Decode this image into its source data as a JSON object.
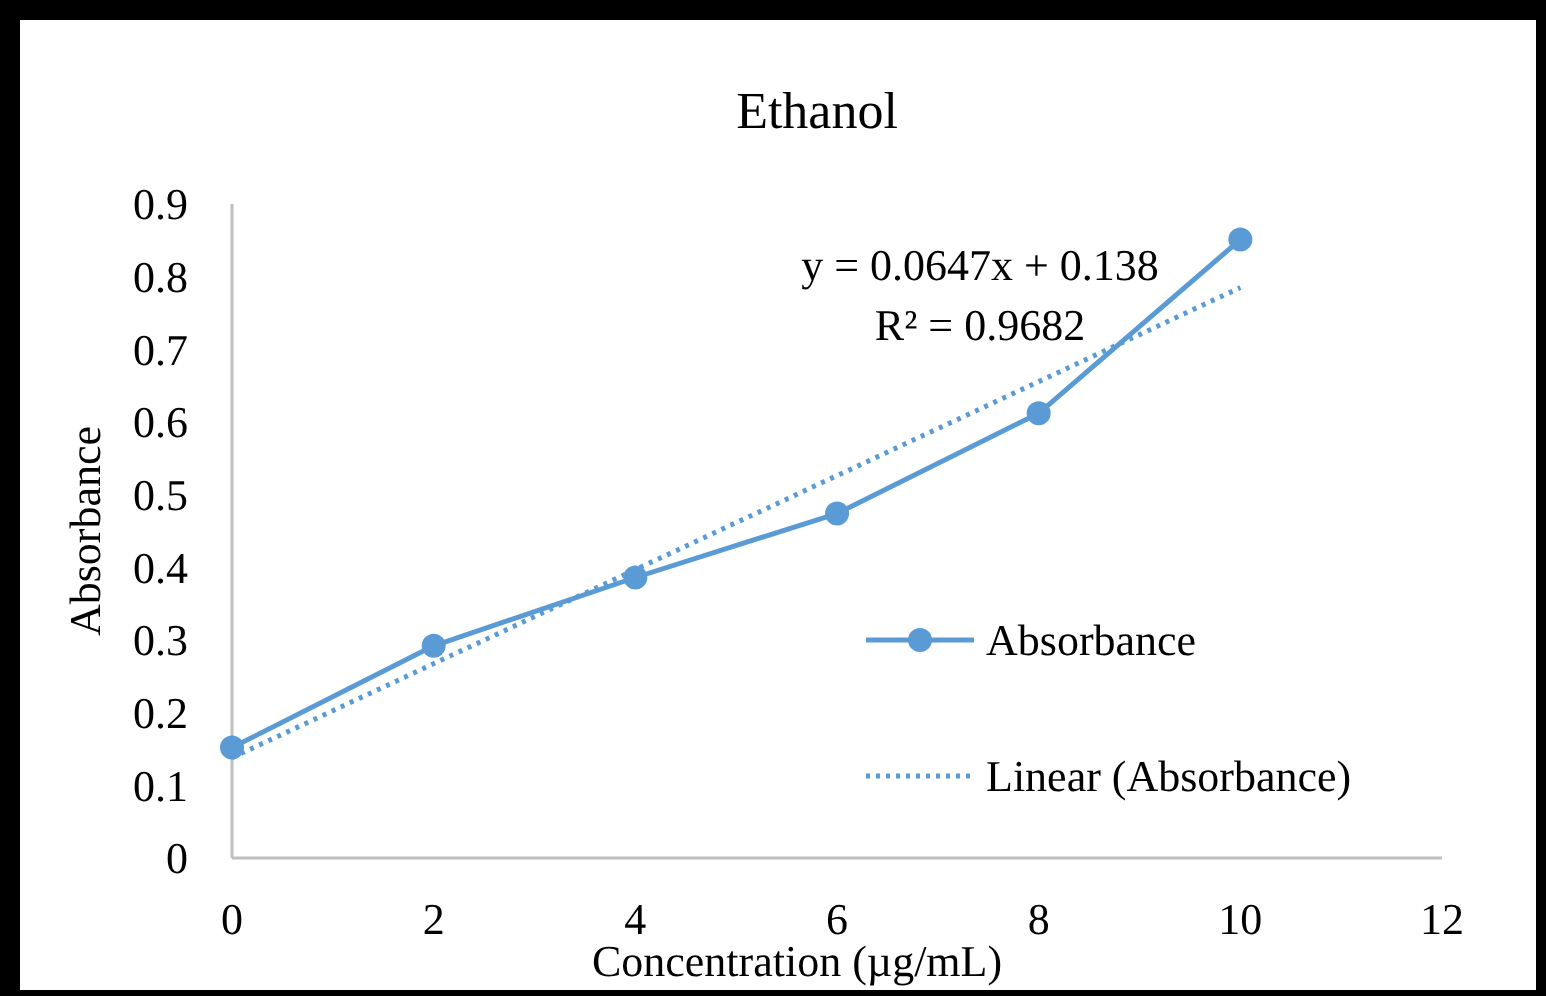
{
  "chart_data": {
    "type": "line",
    "title": "Ethanol",
    "xlabel": "Concentration (µg/mL)",
    "ylabel": "Absorbance",
    "xlim": [
      0,
      12
    ],
    "xticks": [
      0,
      2,
      4,
      6,
      8,
      10,
      12
    ],
    "ylim": [
      0,
      0.9
    ],
    "yticks": [
      0,
      0.1,
      0.2,
      0.3,
      0.4,
      0.5,
      0.6,
      0.7,
      0.8,
      0.9
    ],
    "grid": false,
    "legend": "right",
    "annotations": [
      "y = 0.0647x + 0.138",
      "R² = 0.9682"
    ],
    "series": [
      {
        "name": "Absorbance",
        "color": "#5b9bd5",
        "marker": "circle",
        "line_style": "solid",
        "x": [
          0,
          2,
          4,
          6,
          8,
          10
        ],
        "values": [
          0.152,
          0.292,
          0.386,
          0.474,
          0.612,
          0.851
        ]
      },
      {
        "name": "Linear (Absorbance)",
        "color": "#5b9bd5",
        "marker": "none",
        "line_style": "dotted",
        "x": [
          0,
          10
        ],
        "values": [
          0.138,
          0.785
        ]
      }
    ]
  }
}
